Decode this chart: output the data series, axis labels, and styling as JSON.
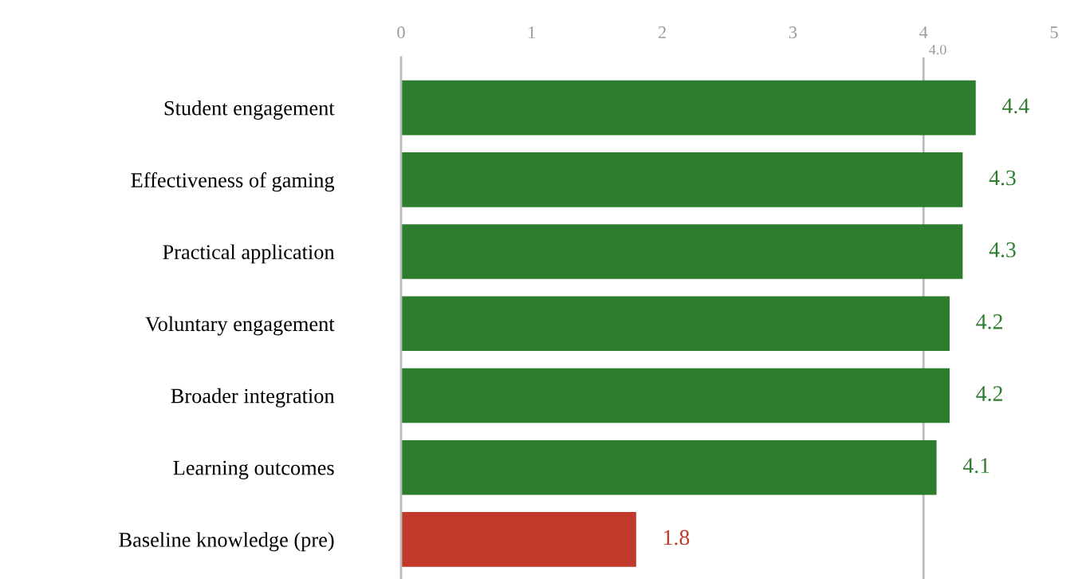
{
  "chart_data": {
    "type": "bar",
    "orientation": "horizontal",
    "categories": [
      "Student engagement",
      "Effectiveness of gaming",
      "Practical application",
      "Voluntary engagement",
      "Broader integration",
      "Learning outcomes",
      "Baseline knowledge (pre)"
    ],
    "values": [
      4.4,
      4.3,
      4.3,
      4.2,
      4.2,
      4.1,
      1.8
    ],
    "colors": [
      "#2e7d2e",
      "#2e7d2e",
      "#2e7d2e",
      "#2e7d2e",
      "#2e7d2e",
      "#2e7d2e",
      "#c0392b"
    ],
    "data_labels": true,
    "xlim": [
      0,
      5
    ],
    "xticks": [
      0,
      1,
      2,
      3,
      4,
      5
    ],
    "ref_lines": [
      {
        "axis": "x",
        "value": 4.0,
        "label": "4.0",
        "color": "#bbbbbb"
      }
    ],
    "grid": false,
    "legend": false
  }
}
